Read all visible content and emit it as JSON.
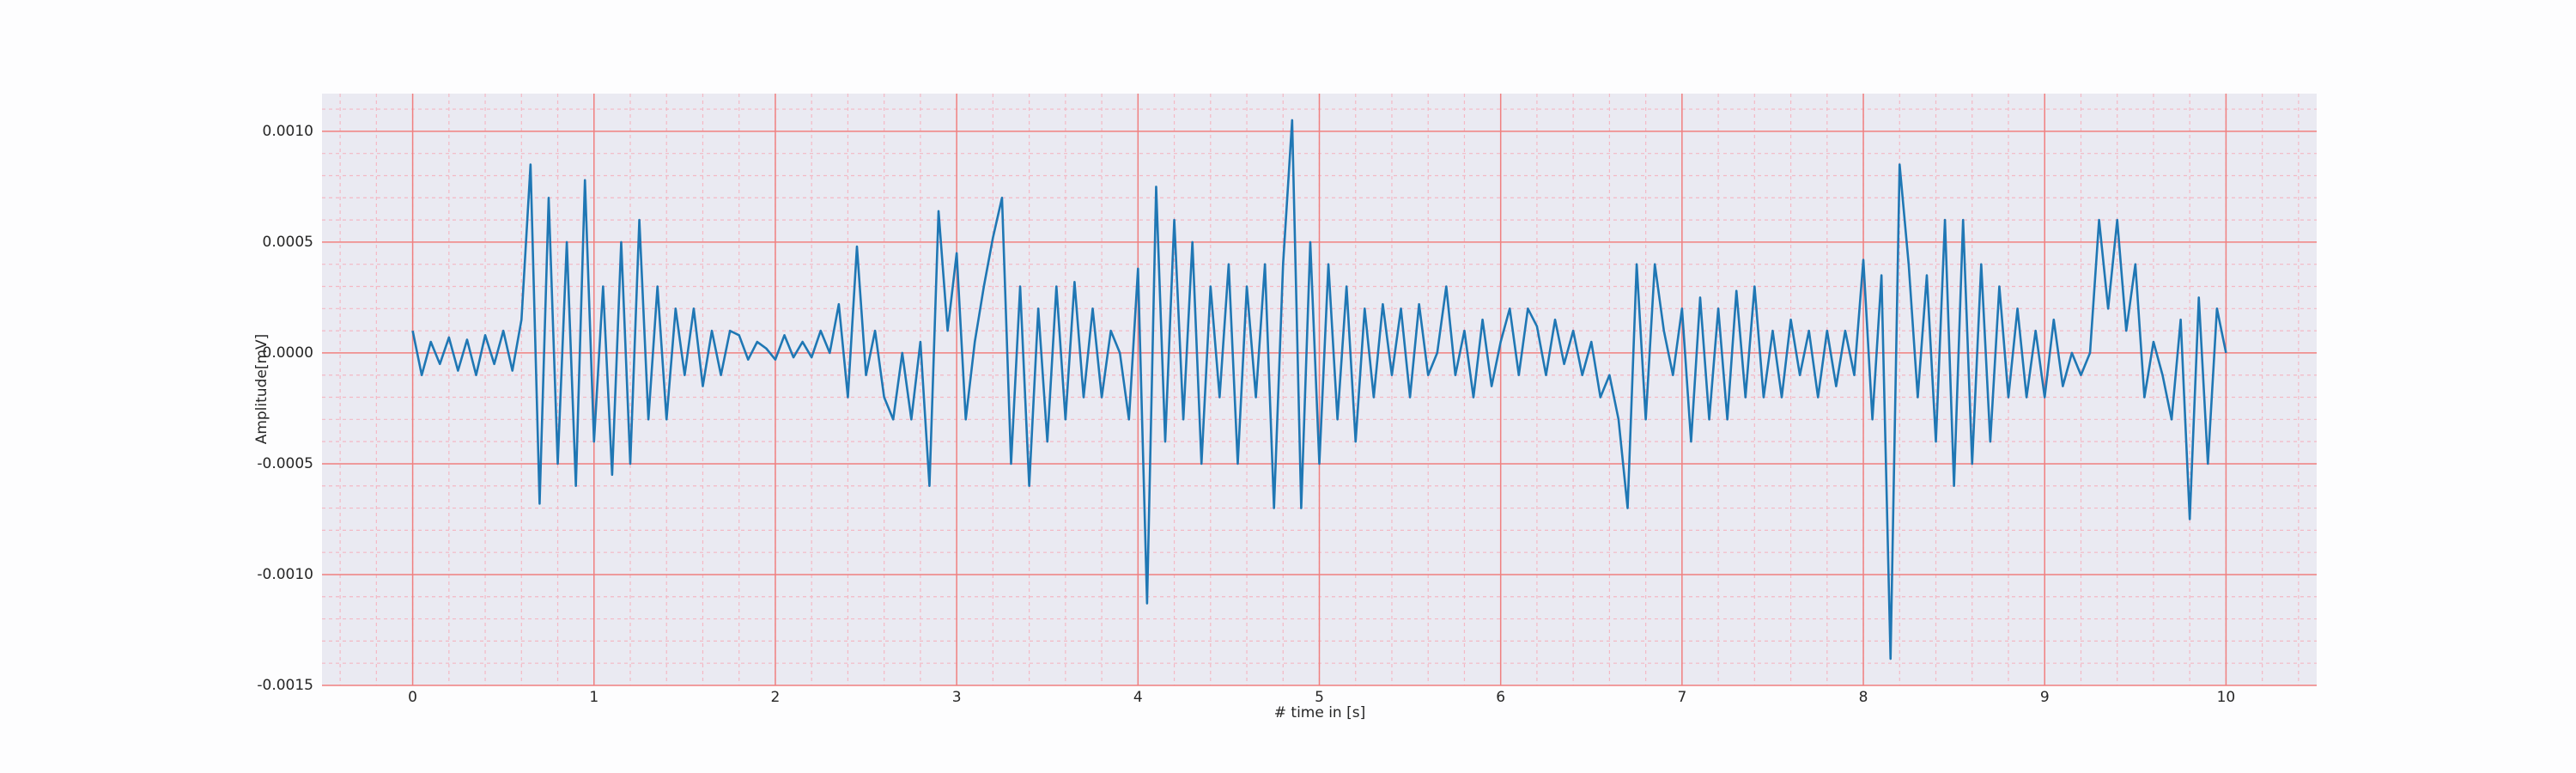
{
  "chart_data": {
    "type": "line",
    "xlabel": "# time in [s]",
    "ylabel": "Amplitude[mV]",
    "xlim": [
      -0.5,
      10.5
    ],
    "ylim": [
      -0.0015,
      0.00117
    ],
    "xticks": [
      0,
      1,
      2,
      3,
      4,
      5,
      6,
      7,
      8,
      9,
      10
    ],
    "yticks": [
      {
        "value": -0.0015,
        "label": "-0.0015"
      },
      {
        "value": -0.001,
        "label": "-0.0010"
      },
      {
        "value": -0.0005,
        "label": "-0.0005"
      },
      {
        "value": 0,
        "label": "0.0000"
      },
      {
        "value": 0.0005,
        "label": "0.0005"
      },
      {
        "value": 0.001,
        "label": "0.0010"
      }
    ],
    "xminorticks": [
      -0.4,
      -0.2,
      0,
      0.2,
      0.4,
      0.6,
      0.8,
      1,
      1.2,
      1.4,
      1.6,
      1.8,
      2,
      2.2,
      2.4,
      2.6,
      2.8,
      3,
      3.2,
      3.4,
      3.6,
      3.8,
      4,
      4.2,
      4.4,
      4.6,
      4.8,
      5,
      5.2,
      5.4,
      5.6,
      5.8,
      6,
      6.2,
      6.4,
      6.6,
      6.8,
      7,
      7.2,
      7.4,
      7.6,
      7.8,
      8,
      8.2,
      8.4,
      8.6,
      8.8,
      9,
      9.2,
      9.4,
      9.6,
      9.8,
      10,
      10.2,
      10.4
    ],
    "yminorticks": [
      -0.0014,
      -0.0013,
      -0.0012,
      -0.0011,
      -0.0009,
      -0.0008,
      -0.0007,
      -0.0006,
      -0.0004,
      -0.0003,
      -0.0002,
      -0.0001,
      0.0001,
      0.0002,
      0.0003,
      0.0004,
      0.0006,
      0.0007,
      0.0008,
      0.0009,
      0.0011
    ],
    "grid": true,
    "major_grid_color": "#f08080",
    "minor_grid_color": "#f4b8c4",
    "plot_background": "#eaeaf2",
    "series": [
      {
        "color": "#1f77b4",
        "x": [
          0,
          0.05,
          0.1,
          0.15,
          0.2,
          0.25,
          0.3,
          0.35,
          0.4,
          0.45,
          0.5,
          0.55,
          0.6,
          0.65,
          0.7,
          0.75,
          0.8,
          0.85,
          0.9,
          0.95,
          1,
          1.05,
          1.1,
          1.15,
          1.2,
          1.25,
          1.3,
          1.35,
          1.4,
          1.45,
          1.5,
          1.55,
          1.6,
          1.65,
          1.7,
          1.75,
          1.8,
          1.85,
          1.9,
          1.95,
          2,
          2.05,
          2.1,
          2.15,
          2.2,
          2.25,
          2.3,
          2.35,
          2.4,
          2.45,
          2.5,
          2.55,
          2.6,
          2.65,
          2.7,
          2.75,
          2.8,
          2.85,
          2.9,
          2.95,
          3,
          3.05,
          3.1,
          3.15,
          3.2,
          3.25,
          3.3,
          3.35,
          3.4,
          3.45,
          3.5,
          3.55,
          3.6,
          3.65,
          3.7,
          3.75,
          3.8,
          3.85,
          3.9,
          3.95,
          4,
          4.05,
          4.1,
          4.15,
          4.2,
          4.25,
          4.3,
          4.35,
          4.4,
          4.45,
          4.5,
          4.55,
          4.6,
          4.65,
          4.7,
          4.75,
          4.8,
          4.85,
          4.9,
          4.95,
          5,
          5.05,
          5.1,
          5.15,
          5.2,
          5.25,
          5.3,
          5.35,
          5.4,
          5.45,
          5.5,
          5.55,
          5.6,
          5.65,
          5.7,
          5.75,
          5.8,
          5.85,
          5.9,
          5.95,
          6,
          6.05,
          6.1,
          6.15,
          6.2,
          6.25,
          6.3,
          6.35,
          6.4,
          6.45,
          6.5,
          6.55,
          6.6,
          6.65,
          6.7,
          6.75,
          6.8,
          6.85,
          6.9,
          6.95,
          7,
          7.05,
          7.1,
          7.15,
          7.2,
          7.25,
          7.3,
          7.35,
          7.4,
          7.45,
          7.5,
          7.55,
          7.6,
          7.65,
          7.7,
          7.75,
          7.8,
          7.85,
          7.9,
          7.95,
          8,
          8.05,
          8.1,
          8.15,
          8.2,
          8.25,
          8.3,
          8.35,
          8.4,
          8.45,
          8.5,
          8.55,
          8.6,
          8.65,
          8.7,
          8.75,
          8.8,
          8.85,
          8.9,
          8.95,
          9,
          9.05,
          9.1,
          9.15,
          9.2,
          9.25,
          9.3,
          9.35,
          9.4,
          9.45,
          9.5,
          9.55,
          9.6,
          9.65,
          9.7,
          9.75,
          9.8,
          9.85,
          9.9,
          9.95,
          10
        ],
        "values": [
          0.0001,
          -0.0001,
          5e-05,
          -5e-05,
          7e-05,
          -8e-05,
          6e-05,
          -0.0001,
          8e-05,
          -5e-05,
          0.0001,
          -8e-05,
          0.00015,
          0.00085,
          -0.00068,
          0.0007,
          -0.0005,
          0.0005,
          -0.0006,
          0.00078,
          -0.0004,
          0.0003,
          -0.00055,
          0.0005,
          -0.0005,
          0.0006,
          -0.0003,
          0.0003,
          -0.0003,
          0.0002,
          -0.0001,
          0.0002,
          -0.00015,
          0.0001,
          -0.0001,
          0.0001,
          8e-05,
          -3e-05,
          5e-05,
          2e-05,
          -3e-05,
          8e-05,
          -2e-05,
          5e-05,
          -2e-05,
          0.0001,
          0,
          0.00022,
          -0.0002,
          0.00048,
          -0.0001,
          0.0001,
          -0.0002,
          -0.0003,
          0,
          -0.0003,
          5e-05,
          -0.0006,
          0.00064,
          0.0001,
          0.00045,
          -0.0003,
          5e-05,
          0.0003,
          0.00052,
          0.0007,
          -0.0005,
          0.0003,
          -0.0006,
          0.0002,
          -0.0004,
          0.0003,
          -0.0003,
          0.00032,
          -0.0002,
          0.0002,
          -0.0002,
          0.0001,
          0,
          -0.0003,
          0.00038,
          -0.00113,
          0.00075,
          -0.0004,
          0.0006,
          -0.0003,
          0.0005,
          -0.0005,
          0.0003,
          -0.0002,
          0.0004,
          -0.0005,
          0.0003,
          -0.0002,
          0.0004,
          -0.0007,
          0.0004,
          0.00105,
          -0.0007,
          0.0005,
          -0.0005,
          0.0004,
          -0.0003,
          0.0003,
          -0.0004,
          0.0002,
          -0.0002,
          0.00022,
          -0.0001,
          0.0002,
          -0.0002,
          0.00022,
          -0.0001,
          0,
          0.0003,
          -0.0001,
          0.0001,
          -0.0002,
          0.00015,
          -0.00015,
          5e-05,
          0.0002,
          -0.0001,
          0.0002,
          0.00012,
          -0.0001,
          0.00015,
          -5e-05,
          0.0001,
          -0.0001,
          5e-05,
          -0.0002,
          -0.0001,
          -0.0003,
          -0.0007,
          0.0004,
          -0.0003,
          0.0004,
          0.0001,
          -0.0001,
          0.0002,
          -0.0004,
          0.00025,
          -0.0003,
          0.0002,
          -0.0003,
          0.00028,
          -0.0002,
          0.0003,
          -0.0002,
          0.0001,
          -0.0002,
          0.00015,
          -0.0001,
          0.0001,
          -0.0002,
          0.0001,
          -0.00015,
          0.0001,
          -0.0001,
          0.00042,
          -0.0003,
          0.00035,
          -0.00138,
          0.00085,
          0.0004,
          -0.0002,
          0.00035,
          -0.0004,
          0.0006,
          -0.0006,
          0.0006,
          -0.0005,
          0.0004,
          -0.0004,
          0.0003,
          -0.0002,
          0.0002,
          -0.0002,
          0.0001,
          -0.0002,
          0.00015,
          -0.00015,
          0,
          -0.0001,
          0,
          0.0006,
          0.0002,
          0.0006,
          0.0001,
          0.0004,
          -0.0002,
          5e-05,
          -0.0001,
          -0.0003,
          0.00015,
          -0.00075,
          0.00025,
          -0.0005,
          0.0002,
          0
        ]
      }
    ]
  }
}
